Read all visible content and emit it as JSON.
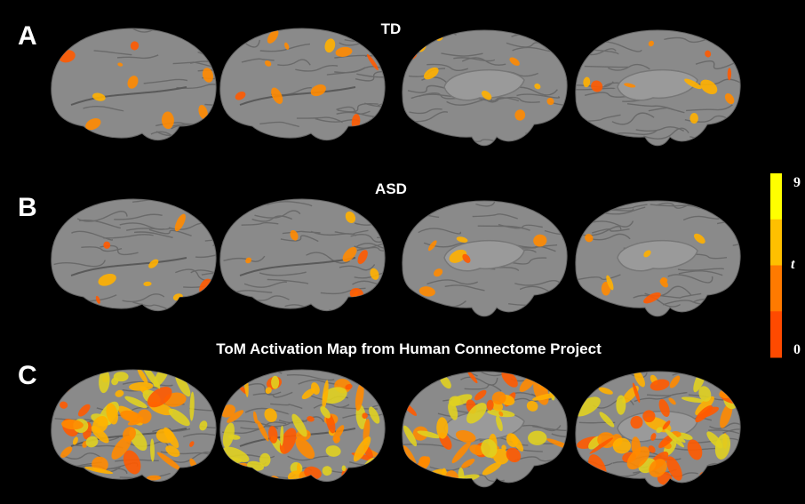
{
  "panels": [
    {
      "letter": "A",
      "title": "TD"
    },
    {
      "letter": "B",
      "title": "ASD"
    },
    {
      "letter": "C",
      "title": "ToM Activation Map from Human Connectome Project"
    }
  ],
  "colorbar": {
    "label": "t",
    "max": 9,
    "min": 0,
    "colors": [
      "#ffff00",
      "#ffc000",
      "#ff7a00",
      "#ff4a00"
    ]
  }
}
